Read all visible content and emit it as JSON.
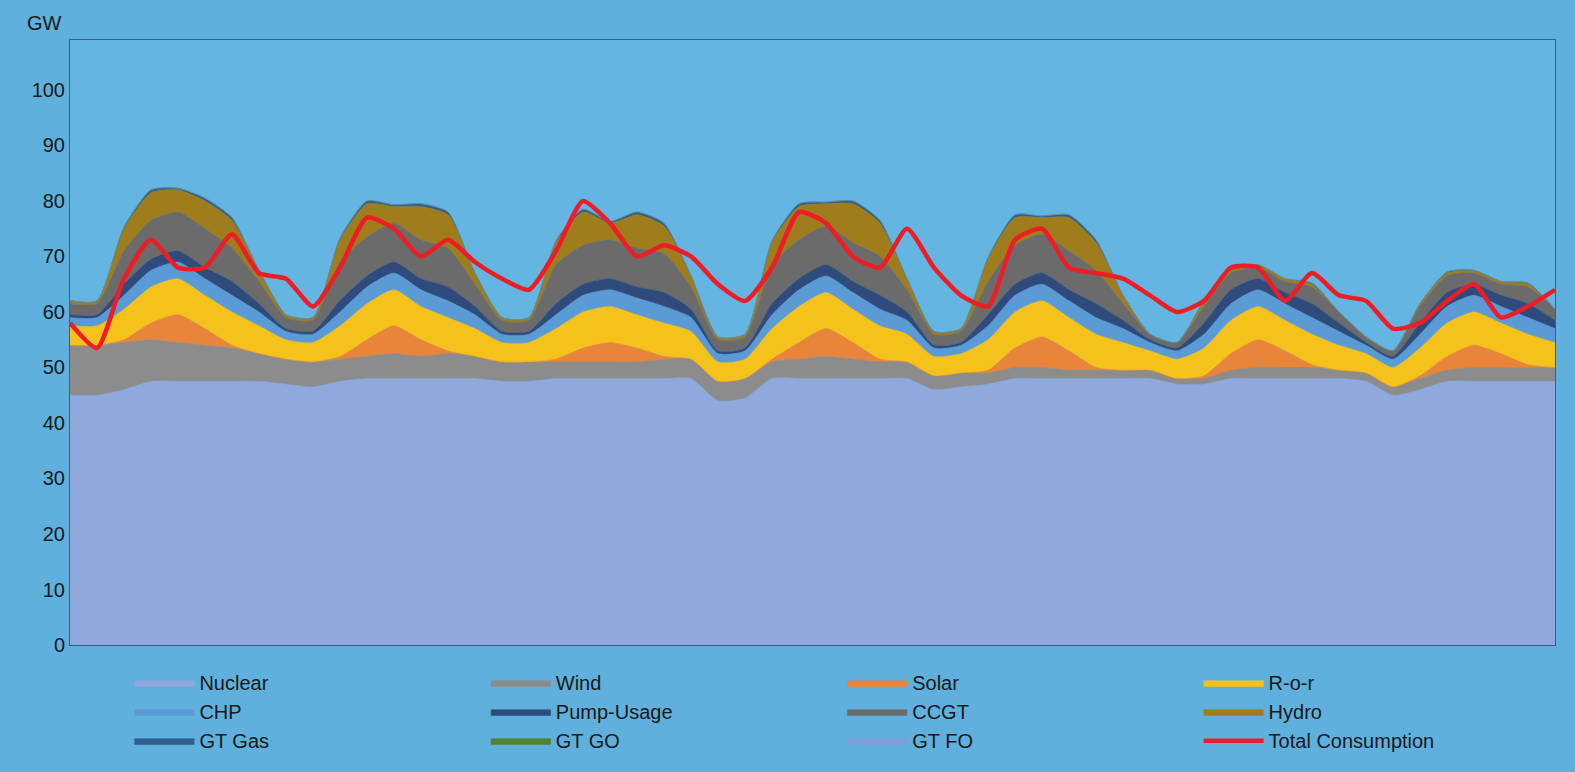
{
  "chart_data": {
    "type": "area",
    "stacked": true,
    "ylabel": "GW",
    "x": [
      0,
      3,
      6,
      9,
      12,
      15,
      18,
      21,
      24,
      27,
      30,
      33,
      36,
      39,
      42,
      45,
      48,
      51,
      54,
      57,
      60,
      63,
      66,
      69,
      72,
      75,
      78,
      81,
      84,
      87,
      90,
      93,
      96,
      99,
      102,
      105,
      108,
      111,
      114,
      117,
      120,
      123,
      126,
      129,
      132,
      135,
      138,
      141,
      144,
      147,
      150,
      153,
      156,
      159,
      162,
      165
    ],
    "xlim": [
      0,
      165
    ],
    "ylim": [
      0,
      109
    ],
    "yticks": [
      0,
      10,
      20,
      30,
      40,
      50,
      60,
      70,
      80,
      90,
      100
    ],
    "tick_labels": "y",
    "grid": false,
    "legend": "bottom",
    "series": [
      {
        "name": "Nuclear",
        "type": "area",
        "color": "#8fa9dc",
        "values": [
          45,
          45,
          46,
          47.5,
          47.5,
          47.5,
          47.5,
          47.5,
          47,
          46.5,
          47.5,
          48,
          48,
          48,
          48,
          48,
          47.5,
          47.5,
          48,
          48,
          48,
          48,
          48,
          48,
          44,
          44.5,
          48,
          48,
          48,
          48,
          48,
          48,
          46,
          46.5,
          47,
          48,
          48,
          48,
          48,
          48,
          48,
          47,
          47,
          48,
          48,
          48,
          48,
          48,
          47.5,
          45,
          46,
          47.5,
          47.5,
          47.5,
          47.5,
          47.5
        ]
      },
      {
        "name": "Wind",
        "type": "area",
        "color": "#8c8c8c",
        "values": [
          9,
          9,
          8.5,
          7.5,
          7,
          6.5,
          6,
          5,
          4.5,
          4.5,
          4,
          4,
          4.5,
          4,
          4.5,
          4,
          3.5,
          3.5,
          3,
          3,
          3,
          3,
          3.5,
          3.5,
          3.5,
          3.5,
          3,
          3.5,
          4,
          3.5,
          3,
          3,
          2.5,
          2.5,
          2,
          2,
          2,
          1.5,
          1.5,
          1.5,
          1.5,
          1,
          1,
          1.5,
          2,
          2,
          2,
          1.5,
          1.5,
          1.5,
          2,
          2,
          2.5,
          2.5,
          2.5,
          2.5
        ]
      },
      {
        "name": "Solar",
        "type": "area",
        "color": "#e8853a",
        "values": [
          0,
          0,
          0.5,
          3,
          5,
          3,
          0.5,
          0,
          0,
          0,
          0.5,
          3,
          5,
          3,
          0.5,
          0,
          0,
          0,
          0.5,
          2.5,
          3.5,
          2.5,
          0.5,
          0,
          0,
          0,
          0.5,
          3,
          5,
          3,
          0.5,
          0,
          0,
          0,
          0.5,
          3.5,
          5.5,
          3.5,
          0.5,
          0,
          0,
          0,
          0.5,
          3,
          5,
          3,
          0.5,
          0,
          0,
          0,
          0.5,
          2.5,
          4,
          2.5,
          0.5,
          0
        ]
      },
      {
        "name": "R-o-r",
        "type": "area",
        "color": "#f5c21b",
        "values": [
          3.5,
          3.5,
          5.5,
          6.5,
          6.5,
          6,
          6,
          5,
          3.5,
          3.5,
          5.5,
          6.5,
          6.5,
          6,
          6,
          5,
          3.5,
          3.5,
          5.5,
          6.5,
          6.5,
          6,
          6,
          5,
          3.5,
          3.5,
          5.5,
          6.5,
          6.5,
          6,
          6,
          5,
          3.5,
          3.5,
          5.5,
          6.5,
          6.5,
          6,
          6,
          5,
          3.5,
          3.5,
          5,
          6,
          6,
          5.5,
          5.5,
          4.5,
          3.5,
          3.5,
          5,
          6,
          6,
          5.5,
          5.5,
          4.5
        ]
      },
      {
        "name": "CHP",
        "type": "area",
        "color": "#5b9bd5",
        "values": [
          1.5,
          1.5,
          2.5,
          3,
          3,
          3,
          3,
          2.5,
          1.5,
          1.5,
          2.5,
          3,
          3,
          3,
          3,
          2.5,
          1.5,
          1.5,
          2.5,
          3,
          3,
          3,
          3,
          2.5,
          1.5,
          1.5,
          2.5,
          3,
          3,
          3,
          3,
          2.5,
          1.5,
          1.5,
          2.5,
          3,
          3,
          3,
          3,
          2.5,
          1.5,
          1.5,
          2.5,
          3,
          3,
          3,
          3,
          2.5,
          1.5,
          1.5,
          2.5,
          3,
          3,
          3,
          3,
          2.5
        ]
      },
      {
        "name": "Pump-Usage",
        "type": "area",
        "color": "#2f4b7c",
        "values": [
          0.5,
          0.5,
          2,
          2,
          2,
          2,
          2.5,
          1.5,
          0.5,
          0.5,
          2,
          2,
          2,
          2,
          2.5,
          1.5,
          0.5,
          0.5,
          2,
          2,
          2,
          2,
          2.5,
          1.5,
          0.5,
          0.5,
          2,
          2,
          2,
          2,
          2.5,
          1.5,
          0.5,
          0.5,
          2,
          2,
          2,
          2,
          2.5,
          1.5,
          0.5,
          0.5,
          2,
          2.5,
          2,
          2,
          2.5,
          1.5,
          0.5,
          0.5,
          2,
          2.5,
          2,
          2,
          2.5,
          1.5
        ]
      },
      {
        "name": "CCGT",
        "type": "area",
        "color": "#6b6b6b",
        "values": [
          2,
          2,
          6,
          7,
          7,
          7,
          6,
          4,
          2,
          2,
          7,
          7,
          7,
          7,
          7,
          4,
          2,
          2,
          7,
          7,
          7,
          7,
          7,
          4,
          2,
          2,
          7,
          7,
          7,
          7,
          7,
          4,
          2,
          2,
          6,
          7,
          7,
          7,
          6,
          3,
          1,
          1,
          3,
          3,
          2,
          2,
          3,
          2,
          1,
          1,
          3,
          3,
          2,
          2,
          3,
          2
        ]
      },
      {
        "name": "Hydro",
        "type": "area",
        "color": "#a07d1c",
        "values": [
          0.5,
          0.5,
          4,
          5,
          4,
          5,
          5,
          2,
          0.5,
          0.5,
          4,
          6,
          3,
          6,
          6,
          2,
          0.5,
          0.5,
          4,
          6,
          3,
          6,
          5,
          2,
          0.5,
          0.5,
          4,
          6,
          4,
          7,
          6,
          2,
          0.5,
          0.5,
          4,
          5,
          3,
          6,
          5,
          1.5,
          0,
          0,
          1,
          0.5,
          0.5,
          0.5,
          0.5,
          0,
          0,
          0,
          0.5,
          0.5,
          0.5,
          0.5,
          0.5,
          0
        ]
      },
      {
        "name": "GT Gas",
        "type": "area",
        "color": "#2e5f8a",
        "values": [
          0,
          0,
          0.3,
          0.5,
          0.3,
          0.5,
          0.5,
          0,
          0,
          0,
          0.3,
          0.5,
          0.3,
          0.5,
          0.5,
          0,
          0,
          0,
          0.3,
          0.5,
          0.3,
          0.5,
          0.5,
          0,
          0,
          0,
          0.3,
          0.5,
          0.3,
          0.5,
          0.5,
          0,
          0,
          0,
          0.3,
          0.5,
          0.3,
          0.5,
          0.5,
          0,
          0,
          0,
          0,
          0.2,
          0,
          0,
          0.2,
          0,
          0,
          0,
          0,
          0.2,
          0,
          0,
          0.2,
          0
        ]
      },
      {
        "name": "GT GO",
        "type": "area",
        "color": "#548235",
        "values": [
          0,
          0,
          0,
          0,
          0,
          0,
          0,
          0,
          0,
          0,
          0,
          0,
          0,
          0,
          0,
          0,
          0,
          0,
          0,
          0,
          0,
          0,
          0,
          0,
          0,
          0,
          0,
          0,
          0,
          0,
          0,
          0,
          0,
          0,
          0,
          0,
          0,
          0,
          0,
          0,
          0,
          0,
          0,
          0,
          0,
          0,
          0,
          0,
          0,
          0,
          0,
          0,
          0,
          0,
          0,
          0
        ]
      },
      {
        "name": "GT FO",
        "type": "area",
        "color": "#7f9fd8",
        "values": [
          0,
          0,
          0,
          0,
          0,
          0,
          0,
          0,
          0,
          0,
          0,
          0,
          0,
          0,
          0,
          0,
          0,
          0,
          0,
          0,
          0,
          0,
          0,
          0,
          0,
          0,
          0,
          0,
          0,
          0,
          0,
          0,
          0,
          0,
          0,
          0,
          0,
          0,
          0,
          0,
          0,
          0,
          0,
          0,
          0,
          0,
          0,
          0,
          0,
          0,
          0,
          0,
          0,
          0,
          0,
          0
        ]
      },
      {
        "name": "Total Consumption",
        "type": "line",
        "color": "#ee1c25",
        "values": [
          58,
          53.5,
          66,
          73,
          68,
          68,
          74,
          67,
          66,
          61,
          68,
          77,
          75,
          70,
          73,
          69,
          66,
          64,
          71,
          80,
          76,
          70,
          72,
          70,
          65,
          62,
          68,
          78,
          76,
          70,
          68,
          75,
          68,
          63,
          61,
          73,
          75,
          68,
          67,
          66,
          63,
          60,
          62,
          68,
          68,
          62,
          67,
          63,
          62,
          57,
          58,
          62,
          65,
          59,
          61,
          64
        ]
      }
    ]
  }
}
